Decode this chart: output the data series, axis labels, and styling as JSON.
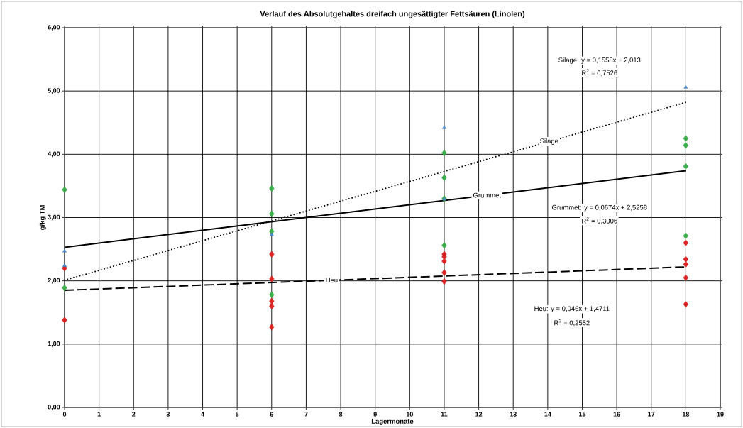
{
  "chart_data": {
    "type": "scatter",
    "title": "Verlauf des Absolutgehaltes dreifach ungesättigter Fettsäuren (Linolen)",
    "xlabel": "Lagermonate",
    "ylabel": "g/kg TM",
    "xlim": [
      0,
      19
    ],
    "xticks": [
      0,
      1,
      2,
      3,
      4,
      5,
      6,
      7,
      8,
      9,
      10,
      11,
      12,
      13,
      14,
      15,
      16,
      17,
      18,
      19
    ],
    "ylim": [
      0,
      6
    ],
    "yticks": [
      {
        "value": 0,
        "label": "0,00"
      },
      {
        "value": 1,
        "label": "1,00"
      },
      {
        "value": 2,
        "label": "2,00"
      },
      {
        "value": 3,
        "label": "3,00"
      },
      {
        "value": 4,
        "label": "4,00"
      },
      {
        "value": 5,
        "label": "5,00"
      },
      {
        "value": 6,
        "label": "6,00"
      }
    ],
    "grid": true,
    "series": [
      {
        "color": "#e02424",
        "marker": "diamond",
        "x": [
          0,
          0,
          6,
          6,
          6,
          6,
          6,
          11,
          11,
          11,
          11,
          11,
          18,
          18,
          18,
          18,
          18
        ],
        "values": [
          2.2,
          1.38,
          2.42,
          2.03,
          1.68,
          1.6,
          1.27,
          2.42,
          2.38,
          2.31,
          2.13,
          1.99,
          2.6,
          2.34,
          2.26,
          2.05,
          1.63
        ]
      },
      {
        "color": "#3cb04a",
        "marker": "diamond",
        "x": [
          0,
          0,
          6,
          6,
          6,
          6,
          11,
          11,
          11,
          11,
          18,
          18,
          18,
          18
        ],
        "values": [
          3.44,
          1.89,
          3.46,
          3.06,
          2.78,
          1.78,
          4.02,
          3.63,
          3.3,
          2.56,
          4.25,
          4.14,
          3.81,
          2.71
        ]
      },
      {
        "color": "#4a8fd4",
        "marker": "triangle",
        "x": [
          0,
          0,
          6,
          11,
          11,
          18
        ],
        "values": [
          2.47,
          2.24,
          2.73,
          4.42,
          3.29,
          5.06
        ]
      },
      {
        "name": "Silage",
        "type": "line",
        "color": "#000000",
        "line_style": "dotted",
        "marker": "none",
        "x": [
          0,
          18
        ],
        "values": [
          2.01,
          4.82
        ]
      },
      {
        "name": "Grummet",
        "type": "line",
        "color": "#000000",
        "line_style": "solid",
        "marker": "none",
        "x": [
          0,
          18
        ],
        "values": [
          2.53,
          3.74
        ]
      },
      {
        "name": "Heu",
        "type": "line",
        "color": "#000000",
        "line_style": "dashed",
        "marker": "none",
        "x": [
          0,
          18
        ],
        "values": [
          1.85,
          2.22
        ]
      }
    ],
    "annotations": [
      "Silage: y = 0,1558x + 2,013",
      "R$^{2}$ = 0,7526",
      "Grummet: y = 0,0674x + 2,5258",
      "R$^{2}$ = 0,3006",
      "Heu: y = 0,046x + 1,4711",
      "R$^{2}$ = 0,2552"
    ]
  }
}
